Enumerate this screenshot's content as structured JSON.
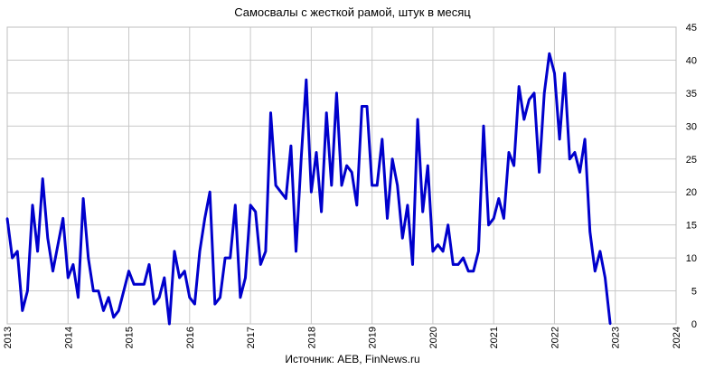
{
  "chart_data": {
    "type": "line",
    "title": "Самосвалы с жесткой рамой, штук в месяц",
    "source": "Источник: AEB, FinNews.ru",
    "xlabel": "",
    "ylabel": "",
    "x_ticks": [
      "2013",
      "2014",
      "2015",
      "2016",
      "2017",
      "2018",
      "2019",
      "2020",
      "2021",
      "2022",
      "2023",
      "2024"
    ],
    "xlim": [
      "2013-01",
      "2024-01"
    ],
    "y_ticks": [
      "0",
      "5",
      "10",
      "15",
      "20",
      "25",
      "30",
      "35",
      "40",
      "45"
    ],
    "ylim": [
      0,
      45
    ],
    "y_axis_side": "right",
    "grid": true,
    "legend": "none",
    "line_color": "#0000cc",
    "grid_color": "#c8c8c8",
    "series": [
      {
        "x": [
          "2013-01",
          "2013-02",
          "2013-03",
          "2013-04",
          "2013-05",
          "2013-06",
          "2013-07",
          "2013-08",
          "2013-09",
          "2013-10",
          "2013-11",
          "2013-12",
          "2014-01",
          "2014-02",
          "2014-03",
          "2014-04",
          "2014-05",
          "2014-06",
          "2014-07",
          "2014-08",
          "2014-09",
          "2014-10",
          "2014-11",
          "2014-12",
          "2015-01",
          "2015-02",
          "2015-03",
          "2015-04",
          "2015-05",
          "2015-06",
          "2015-07",
          "2015-08",
          "2015-09",
          "2015-10",
          "2015-11",
          "2015-12",
          "2016-01",
          "2016-02",
          "2016-03",
          "2016-04",
          "2016-05",
          "2016-06",
          "2016-07",
          "2016-08",
          "2016-09",
          "2016-10",
          "2016-11",
          "2016-12",
          "2017-01",
          "2017-02",
          "2017-03",
          "2017-04",
          "2017-05",
          "2017-06",
          "2017-07",
          "2017-08",
          "2017-09",
          "2017-10",
          "2017-11",
          "2017-12",
          "2018-01",
          "2018-02",
          "2018-03",
          "2018-04",
          "2018-05",
          "2018-06",
          "2018-07",
          "2018-08",
          "2018-09",
          "2018-10",
          "2018-11",
          "2018-12",
          "2019-01",
          "2019-02",
          "2019-03",
          "2019-04",
          "2019-05",
          "2019-06",
          "2019-07",
          "2019-08",
          "2019-09",
          "2019-10",
          "2019-11",
          "2019-12",
          "2020-01",
          "2020-02",
          "2020-03",
          "2020-04",
          "2020-05",
          "2020-06",
          "2020-07",
          "2020-08",
          "2020-09",
          "2020-10",
          "2020-11",
          "2020-12",
          "2021-01",
          "2021-02",
          "2021-03",
          "2021-04",
          "2021-05",
          "2021-06",
          "2021-07",
          "2021-08",
          "2021-09",
          "2021-10",
          "2021-11",
          "2021-12",
          "2022-01",
          "2022-02",
          "2022-03",
          "2022-04",
          "2022-05",
          "2022-06",
          "2022-07",
          "2022-08",
          "2022-09",
          "2022-10",
          "2022-11",
          "2022-12"
        ],
        "values": [
          16,
          10,
          11,
          2,
          5,
          18,
          11,
          22,
          13,
          8,
          12,
          16,
          7,
          9,
          4,
          19,
          10,
          5,
          5,
          2,
          4,
          1,
          2,
          5,
          8,
          6,
          6,
          6,
          9,
          3,
          4,
          7,
          0,
          11,
          7,
          8,
          4,
          3,
          11,
          16,
          20,
          3,
          4,
          10,
          10,
          18,
          4,
          7,
          18,
          17,
          9,
          11,
          32,
          21,
          20,
          19,
          27,
          11,
          25,
          37,
          20,
          26,
          17,
          32,
          21,
          35,
          21,
          24,
          23,
          18,
          33,
          33,
          21,
          21,
          28,
          16,
          25,
          21,
          13,
          18,
          9,
          31,
          17,
          24,
          11,
          12,
          11,
          15,
          9,
          9,
          10,
          8,
          8,
          11,
          30,
          15,
          16,
          19,
          16,
          26,
          24,
          36,
          31,
          34,
          35,
          23,
          35,
          41,
          38,
          28,
          38,
          25,
          26,
          23,
          28,
          14,
          8,
          11,
          7,
          0
        ]
      }
    ]
  }
}
